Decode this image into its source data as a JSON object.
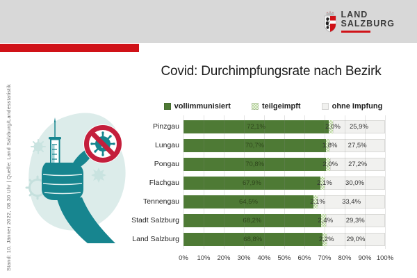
{
  "page": {
    "header": {
      "logo_line1": "LAND",
      "logo_line2": "SALZBURG"
    },
    "title": "Covid: Durchimpfungsrate nach Bezirk",
    "footnote": "Stand: 10. Jänner  2022, 08.30 Uhr | Quelle: Land Salzburg/Landesstatistik"
  },
  "colors": {
    "header_bg": "#d8d8d8",
    "accent_red": "#d01218",
    "full_green": "#4e7a35",
    "partial_green_checker": "#b9d69f",
    "none_vacc_gray": "#f1f1ef",
    "illustration_teal": "#17858f",
    "prohibition_red": "#c41f3c"
  },
  "chart_data": {
    "type": "bar",
    "variant": "horizontal-stacked-100",
    "title": "Covid: Durchimpfungsrate nach Bezirk",
    "categories": [
      "Pinzgau",
      "Lungau",
      "Pongau",
      "Flachgau",
      "Tennengau",
      "Stadt Salzburg",
      "Land Salzburg"
    ],
    "series": [
      {
        "name": "vollimmunisiert",
        "color": "#4e7a35",
        "pattern": "solid",
        "values": [
          72.1,
          70.7,
          70.8,
          67.9,
          64.5,
          68.2,
          68.8
        ],
        "labels": [
          "72,1%",
          "70,7%",
          "70,8%",
          "67,9%",
          "64,5%",
          "68,2%",
          "68,8%"
        ]
      },
      {
        "name": "teilgeimpft",
        "color": "#cadfb5",
        "pattern": "checker",
        "values": [
          2.0,
          1.8,
          2.0,
          2.1,
          2.1,
          2.4,
          2.2
        ],
        "labels": [
          "2,0%",
          "1,8%",
          "2,0%",
          "2,1%",
          "2,1%",
          "2,4%",
          "2,2%"
        ]
      },
      {
        "name": "ohne Impfung",
        "color": "#f1f1ef",
        "pattern": "plain",
        "values": [
          25.9,
          27.5,
          27.2,
          30.0,
          33.4,
          29.3,
          29.0
        ],
        "labels": [
          "25,9%",
          "27,5%",
          "27,2%",
          "30,0%",
          "33,4%",
          "29,3%",
          "29,0%"
        ]
      }
    ],
    "x_ticks": [
      "0%",
      "10%",
      "20%",
      "30%",
      "40%",
      "50%",
      "60%",
      "70%",
      "80%",
      "90%",
      "100%"
    ],
    "xlim": [
      0,
      100
    ],
    "legend_position": "top",
    "grid": true
  }
}
